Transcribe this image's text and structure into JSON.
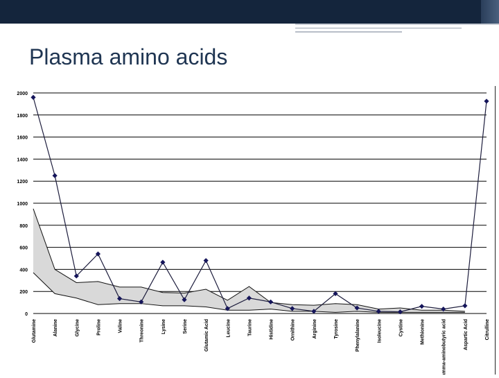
{
  "slide": {
    "title": "Plasma amino acids"
  },
  "colors": {
    "header_bar": "#14253c",
    "title_text": "#1f3552",
    "series_line": "#1c1c3c",
    "marker": "#15155a",
    "normal_band_fill": "#d9d9d9"
  },
  "chart_data": {
    "type": "line",
    "title": "",
    "xlabel": "",
    "ylabel": "",
    "ylim": [
      0,
      2000
    ],
    "yticks": [
      0,
      200,
      400,
      600,
      800,
      1000,
      1200,
      1400,
      1600,
      1800,
      2000
    ],
    "grid": true,
    "legend": "none",
    "categories": [
      "Glutamine",
      "Alanine",
      "Glycine",
      "Proline",
      "Valine",
      "Threonine",
      "Lysine",
      "Serine",
      "Glutamic Acid",
      "Leucine",
      "Taurine",
      "Histidine",
      "Ornithine",
      "Arginine",
      "Tyrosine",
      "Phenylalanine",
      "Isoleucine",
      "Cystine",
      "Methionine",
      "Gamma-aminobutyric acid",
      "Aspartic Acid",
      "Citrulline"
    ],
    "series": [
      {
        "type": "line-with-markers",
        "values": [
          1960,
          1250,
          340,
          540,
          135,
          105,
          465,
          125,
          480,
          45,
          140,
          105,
          45,
          20,
          180,
          50,
          20,
          15,
          65,
          40,
          70,
          1925
        ]
      },
      {
        "type": "range-band",
        "lower": [
          370,
          180,
          140,
          80,
          90,
          90,
          70,
          70,
          60,
          30,
          30,
          40,
          20,
          20,
          10,
          20,
          10,
          10,
          10,
          10,
          10,
          null
        ],
        "upper": [
          950,
          400,
          280,
          290,
          240,
          240,
          190,
          185,
          220,
          120,
          245,
          100,
          80,
          75,
          90,
          80,
          40,
          50,
          30,
          30,
          20,
          null
        ]
      }
    ]
  }
}
